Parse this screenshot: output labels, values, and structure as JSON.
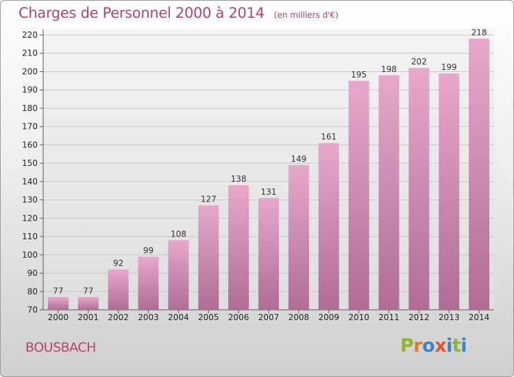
{
  "title": "Charges de Personnel 2000 à 2014",
  "subtitle": "(en milliers d'€)",
  "commune": "BOUSBACH",
  "logo": [
    "P",
    "r",
    "o",
    "x",
    "i",
    "t",
    "i"
  ],
  "colors": {
    "title": "#b2446e",
    "bar_top": "#e7a8cb",
    "bar_bottom": "#b06c95",
    "logo": [
      "#8fb52e",
      "#e07b2a",
      "#3b83c2",
      "#e4552c",
      "#3b83c2",
      "#8fb52e",
      "#3b83c2"
    ]
  },
  "chart_data": {
    "type": "bar",
    "categories": [
      "2000",
      "2001",
      "2002",
      "2003",
      "2004",
      "2005",
      "2006",
      "2007",
      "2008",
      "2009",
      "2010",
      "2011",
      "2012",
      "2013",
      "2014"
    ],
    "values": [
      77,
      77,
      92,
      99,
      108,
      127,
      138,
      131,
      149,
      161,
      195,
      198,
      202,
      199,
      218
    ],
    "ylim": [
      70,
      220
    ],
    "yticks": [
      70,
      80,
      90,
      100,
      110,
      120,
      130,
      140,
      150,
      160,
      170,
      180,
      190,
      200,
      210,
      220
    ],
    "grid": true
  }
}
